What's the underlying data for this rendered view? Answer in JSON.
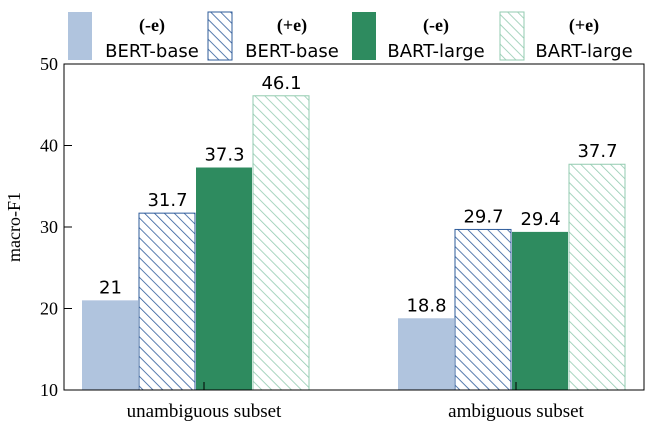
{
  "chart_data": {
    "type": "bar",
    "categories": [
      "unambiguous subset",
      "ambiguous subset"
    ],
    "ylabel": "macro-F1",
    "ylim": [
      10,
      50
    ],
    "yticks": [
      10,
      20,
      30,
      40,
      50
    ],
    "grid": false,
    "legend_position": "top",
    "series": [
      {
        "name": "BERT-base",
        "tag": "(-e)",
        "values": [
          21,
          18.8
        ],
        "labels": [
          "21",
          "18.8"
        ],
        "color": "#b0c4de",
        "pattern": "solid"
      },
      {
        "name": "BERT-base",
        "tag": "(+e)",
        "values": [
          31.7,
          29.7
        ],
        "labels": [
          "31.7",
          "29.7"
        ],
        "color": "#2e5b9a",
        "pattern": "hatch"
      },
      {
        "name": "BART-large",
        "tag": "(-e)",
        "values": [
          37.3,
          29.4
        ],
        "labels": [
          "37.3",
          "29.4"
        ],
        "color": "#2e8b5f",
        "pattern": "solid"
      },
      {
        "name": "BART-large",
        "tag": "(+e)",
        "values": [
          46.1,
          37.7
        ],
        "labels": [
          "46.1",
          "37.7"
        ],
        "color": "#93cbb0",
        "pattern": "hatch"
      }
    ]
  }
}
